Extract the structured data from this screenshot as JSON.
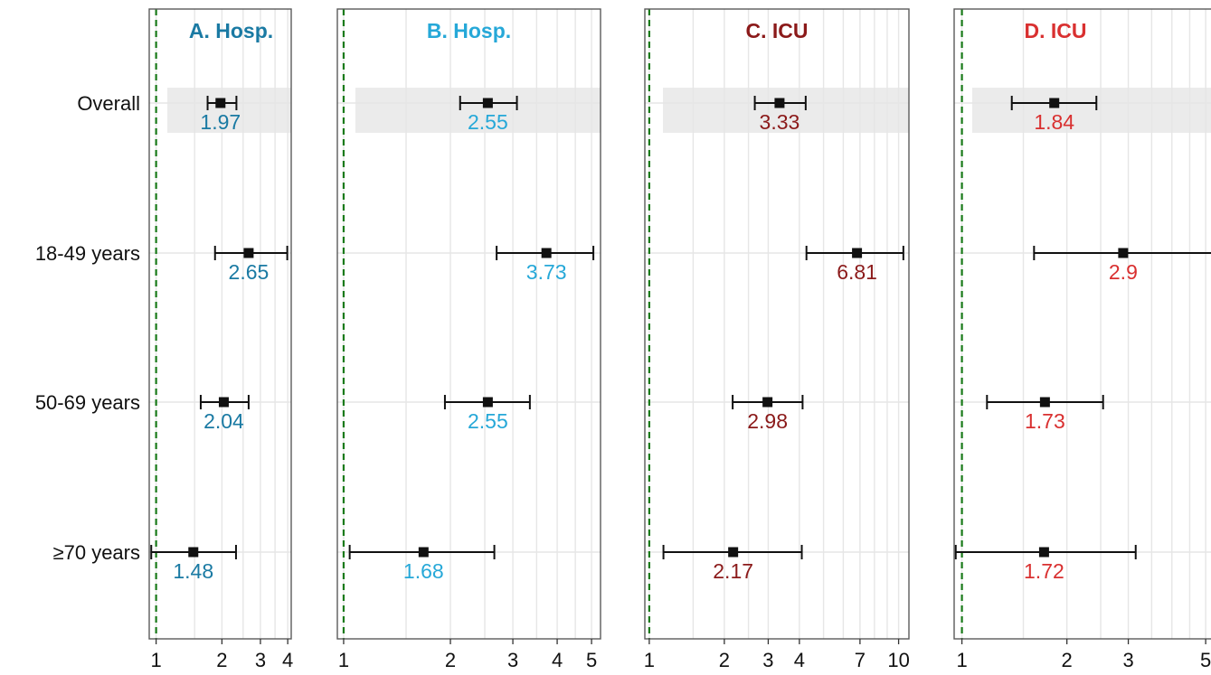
{
  "chart_data": {
    "type": "forest",
    "x_scale": "log",
    "reference_line": 1,
    "rows": [
      "Overall",
      "18-49 years",
      "50-69 years",
      "≥70 years"
    ],
    "highlighted_row": "Overall",
    "panels": [
      {
        "title": "A. Hosp.",
        "color": "#1a7aa3",
        "xlim": [
          0.93,
          4.15
        ],
        "ticks": [
          1,
          2,
          3,
          4
        ],
        "gridlines": [
          1,
          1.5,
          2,
          2.5,
          3,
          3.5,
          4
        ],
        "estimates": [
          {
            "value": 1.97,
            "label": "1.97",
            "lower": 1.72,
            "upper": 2.33
          },
          {
            "value": 2.65,
            "label": "2.65",
            "lower": 1.86,
            "upper": 3.98
          },
          {
            "value": 2.04,
            "label": "2.04",
            "lower": 1.6,
            "upper": 2.65
          },
          {
            "value": 1.48,
            "label": "1.48",
            "lower": 0.95,
            "upper": 2.32
          }
        ]
      },
      {
        "title": "B. Hosp.",
        "color": "#26a8d8",
        "xlim": [
          0.96,
          5.3
        ],
        "ticks": [
          1,
          2,
          3,
          4,
          5
        ],
        "gridlines": [
          1,
          1.5,
          2,
          2.5,
          3,
          3.5,
          4,
          4.5,
          5
        ],
        "estimates": [
          {
            "value": 2.55,
            "label": "2.55",
            "lower": 2.13,
            "upper": 3.08
          },
          {
            "value": 3.73,
            "label": "3.73",
            "lower": 2.7,
            "upper": 5.06
          },
          {
            "value": 2.55,
            "label": "2.55",
            "lower": 1.93,
            "upper": 3.35
          },
          {
            "value": 1.68,
            "label": "1.68",
            "lower": 1.04,
            "upper": 2.66
          }
        ]
      },
      {
        "title": "C. ICU",
        "color": "#8b1a1a",
        "xlim": [
          0.96,
          11
        ],
        "ticks": [
          1,
          2,
          3,
          4,
          7,
          10
        ],
        "gridlines": [
          1,
          1.5,
          2,
          2.5,
          3,
          4,
          5,
          6,
          7,
          8,
          9,
          10
        ],
        "estimates": [
          {
            "value": 3.33,
            "label": "3.33",
            "lower": 2.65,
            "upper": 4.24
          },
          {
            "value": 6.81,
            "label": "6.81",
            "lower": 4.27,
            "upper": 10.45
          },
          {
            "value": 2.98,
            "label": "2.98",
            "lower": 2.16,
            "upper": 4.12
          },
          {
            "value": 2.17,
            "label": "2.17",
            "lower": 1.14,
            "upper": 4.09
          }
        ]
      },
      {
        "title": "D. ICU",
        "color": "#d93030",
        "xlim": [
          0.95,
          5.4
        ],
        "ticks": [
          1,
          2,
          3,
          5
        ],
        "gridlines": [
          1,
          1.5,
          2,
          2.5,
          3,
          3.5,
          4,
          4.5,
          5
        ],
        "estimates": [
          {
            "value": 1.84,
            "label": "1.84",
            "lower": 1.39,
            "upper": 2.43
          },
          {
            "value": 2.9,
            "label": "2.9",
            "lower": 1.61,
            "upper": 5.23
          },
          {
            "value": 1.73,
            "label": "1.73",
            "lower": 1.18,
            "upper": 2.54
          },
          {
            "value": 1.72,
            "label": "1.72",
            "lower": 0.96,
            "upper": 3.15
          }
        ]
      }
    ]
  }
}
